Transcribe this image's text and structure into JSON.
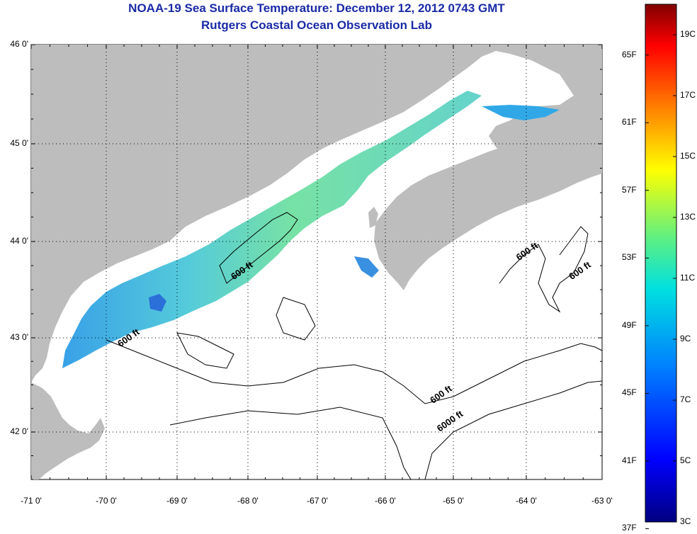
{
  "title_line1": "NOAA-19 Sea Surface Temperature:  December 12, 2012 0743 GMT",
  "title_line2": "Rutgers Coastal Ocean Observation Lab",
  "map": {
    "lat_labels": [
      "46 0'",
      "45 0'",
      "44 0'",
      "43 0'",
      "42 0'"
    ],
    "lat_values": [
      46,
      45,
      44,
      43,
      42
    ],
    "lon_labels": [
      "-71 0'",
      "-70 0'",
      "-69 0'",
      "-68 0'",
      "-67 0'",
      "-66 0'",
      "-65 0'",
      "-64 0'",
      "-63 0'"
    ],
    "lon_values": [
      -71,
      -70,
      -69,
      -68,
      -67,
      -66,
      -65,
      -64,
      -63
    ],
    "lat_range": [
      41.5,
      46.0
    ],
    "lon_range": [
      -71.0,
      -63.0
    ],
    "contour_labels": [
      {
        "text": "600 ft",
        "lon": -68.2,
        "lat": 43.6
      },
      {
        "text": "600 ft",
        "lon": -69.8,
        "lat": 42.9
      },
      {
        "text": "600 ft",
        "lon": -64.1,
        "lat": 43.8
      },
      {
        "text": "600 ft",
        "lon": -63.4,
        "lat": 43.6
      },
      {
        "text": "600 ft",
        "lon": -65.3,
        "lat": 42.3
      },
      {
        "text": "6000 ft",
        "lon": -65.2,
        "lat": 42.0
      }
    ],
    "colors": {
      "land": "#bdbdbd",
      "water": "#ffffff",
      "warm_sst": "#6fe0a0",
      "cool_sst": "#2ab0e0",
      "contour": "#000000",
      "grid": "#000000"
    }
  },
  "colorbar": {
    "f_labels": [
      "65F",
      "61F",
      "57F",
      "53F",
      "49F",
      "45F",
      "41F",
      "37F"
    ],
    "c_labels": [
      "19C",
      "17C",
      "15C",
      "13C",
      "11C",
      "9C",
      "7C",
      "5C",
      "3C"
    ],
    "f_values": [
      65,
      61,
      57,
      53,
      49,
      45,
      41,
      37
    ],
    "c_values": [
      19,
      17,
      15,
      13,
      11,
      9,
      7,
      5,
      3
    ],
    "range_c": [
      3,
      20
    ]
  }
}
